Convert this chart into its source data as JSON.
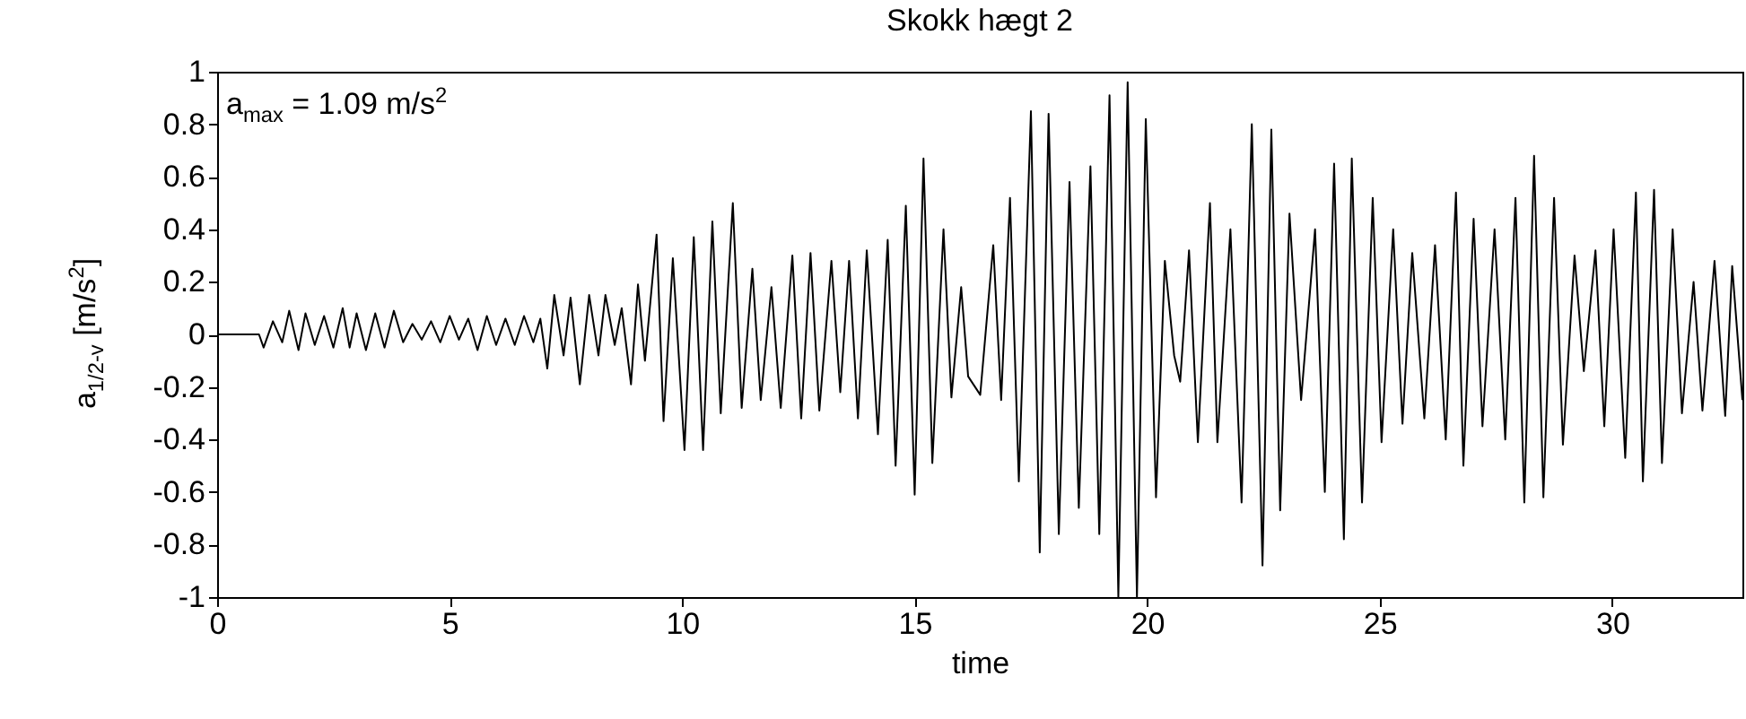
{
  "chart_data": {
    "type": "line",
    "title": "Skokk hægt 2",
    "xlabel": "time",
    "ylabel": "a$_{1/2-v}$ [m/s$^{2}$]",
    "annotations": [
      "a$_{max}$ = 1.09 m/s$^{2}$"
    ],
    "xlim": [
      0,
      32.8
    ],
    "xticks": [
      0,
      5,
      10,
      15,
      20,
      25,
      30
    ],
    "ylim": [
      -1,
      1
    ],
    "yticks": [
      -1,
      -0.8,
      -0.6,
      -0.4,
      -0.2,
      0,
      0.2,
      0.4,
      0.6,
      0.8,
      1
    ],
    "grid": false,
    "marker": "none",
    "line_style": "solid",
    "series": [
      {
        "color": "#000000",
        "x": [
          0,
          0.9,
          1.0,
          1.2,
          1.4,
          1.55,
          1.75,
          1.9,
          2.1,
          2.3,
          2.5,
          2.7,
          2.85,
          3.0,
          3.2,
          3.4,
          3.6,
          3.8,
          4.0,
          4.2,
          4.4,
          4.6,
          4.8,
          5.0,
          5.2,
          5.4,
          5.6,
          5.8,
          6.0,
          6.2,
          6.4,
          6.6,
          6.8,
          6.95,
          7.1,
          7.25,
          7.45,
          7.6,
          7.8,
          8.0,
          8.2,
          8.35,
          8.55,
          8.7,
          8.9,
          9.05,
          9.2,
          9.45,
          9.6,
          9.8,
          10.05,
          10.25,
          10.45,
          10.65,
          10.83,
          11.09,
          11.28,
          11.51,
          11.69,
          11.92,
          12.12,
          12.37,
          12.56,
          12.76,
          12.95,
          13.21,
          13.4,
          13.59,
          13.78,
          13.97,
          14.21,
          14.42,
          14.59,
          14.81,
          15.0,
          15.19,
          15.38,
          15.62,
          15.79,
          16.0,
          16.15,
          16.41,
          16.69,
          16.86,
          17.05,
          17.24,
          17.5,
          17.69,
          17.88,
          18.1,
          18.33,
          18.53,
          18.78,
          18.97,
          19.19,
          19.38,
          19.58,
          19.78,
          19.97,
          20.19,
          20.38,
          20.58,
          20.71,
          20.9,
          21.09,
          21.35,
          21.51,
          21.79,
          22.03,
          22.25,
          22.48,
          22.67,
          22.86,
          23.06,
          23.31,
          23.61,
          23.82,
          24.02,
          24.23,
          24.4,
          24.62,
          24.85,
          25.04,
          25.29,
          25.49,
          25.7,
          25.96,
          26.19,
          26.42,
          26.64,
          26.8,
          27.02,
          27.21,
          27.47,
          27.7,
          27.92,
          28.11,
          28.32,
          28.52,
          28.75,
          28.94,
          29.19,
          29.39,
          29.64,
          29.83,
          30.03,
          30.28,
          30.51,
          30.66,
          30.9,
          31.07,
          31.3,
          31.5,
          31.75,
          31.94,
          32.2,
          32.43,
          32.58,
          32.8
        ],
        "values": [
          0,
          0,
          -0.05,
          0.05,
          -0.03,
          0.09,
          -0.06,
          0.08,
          -0.04,
          0.07,
          -0.05,
          0.1,
          -0.05,
          0.08,
          -0.06,
          0.08,
          -0.05,
          0.09,
          -0.03,
          0.04,
          -0.02,
          0.05,
          -0.03,
          0.07,
          -0.02,
          0.06,
          -0.06,
          0.07,
          -0.04,
          0.06,
          -0.04,
          0.07,
          -0.03,
          0.06,
          -0.13,
          0.15,
          -0.08,
          0.14,
          -0.19,
          0.15,
          -0.08,
          0.15,
          -0.04,
          0.1,
          -0.19,
          0.19,
          -0.1,
          0.38,
          -0.33,
          0.29,
          -0.44,
          0.37,
          -0.44,
          0.43,
          -0.3,
          0.5,
          -0.28,
          0.25,
          -0.25,
          0.18,
          -0.28,
          0.3,
          -0.32,
          0.31,
          -0.29,
          0.28,
          -0.22,
          0.28,
          -0.32,
          0.32,
          -0.38,
          0.36,
          -0.5,
          0.49,
          -0.61,
          0.67,
          -0.49,
          0.4,
          -0.24,
          0.18,
          -0.16,
          -0.23,
          0.34,
          -0.25,
          0.52,
          -0.56,
          0.85,
          -0.83,
          0.84,
          -0.76,
          0.58,
          -0.66,
          0.64,
          -0.76,
          0.91,
          -1,
          0.96,
          -1,
          0.82,
          -0.62,
          0.28,
          -0.08,
          -0.18,
          0.32,
          -0.41,
          0.5,
          -0.41,
          0.4,
          -0.64,
          0.8,
          -0.88,
          0.78,
          -0.67,
          0.46,
          -0.25,
          0.4,
          -0.6,
          0.65,
          -0.78,
          0.67,
          -0.64,
          0.52,
          -0.41,
          0.4,
          -0.34,
          0.31,
          -0.32,
          0.34,
          -0.4,
          0.54,
          -0.5,
          0.44,
          -0.35,
          0.4,
          -0.4,
          0.52,
          -0.64,
          0.68,
          -0.62,
          0.52,
          -0.42,
          0.3,
          -0.14,
          0.32,
          -0.35,
          0.4,
          -0.47,
          0.54,
          -0.56,
          0.55,
          -0.49,
          0.4,
          -0.3,
          0.2,
          -0.29,
          0.28,
          -0.31,
          0.26,
          -0.25
        ]
      }
    ]
  }
}
